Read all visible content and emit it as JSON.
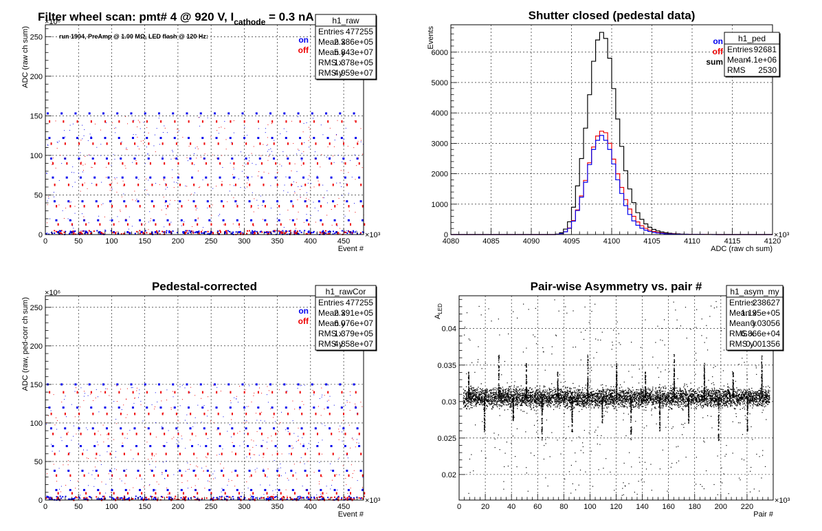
{
  "panels": [
    {
      "id": "raw",
      "title": "Filter wheel scan: pmt#   4 @   920 V, I",
      "title_sub": "cathode",
      "title_tail": " = 0.3 nA",
      "run_label": "run 1904, PreAmp @ 1.00 MΩ, LED flash @  120 Hz:",
      "ylabel": "ADC (raw ch sum)",
      "xlabel": "Event #",
      "y_exponent": "×10⁶",
      "x_exponent": "×10³",
      "legend": [
        {
          "label": "on",
          "color": "#0000ee"
        },
        {
          "label": "off",
          "color": "#ee0000"
        }
      ],
      "stats": {
        "name": "h1_raw",
        "rows": [
          [
            "Entries",
            "477255"
          ],
          [
            "Mean x",
            "2.386e+05"
          ],
          [
            "Mean y",
            "5.843e+07"
          ],
          [
            "RMS x",
            "1.378e+05"
          ],
          [
            "RMS y",
            "4.959e+07"
          ]
        ]
      }
    },
    {
      "id": "ped",
      "title": "Shutter closed (pedestal data)",
      "ylabel": "Events",
      "xlabel": "ADC (raw ch sum)",
      "x_exponent": "×10³",
      "legend": [
        {
          "label": "on",
          "color": "#0000ee"
        },
        {
          "label": "off",
          "color": "#ee0000"
        },
        {
          "label": "sum",
          "color": "#000000"
        }
      ],
      "stats": {
        "name": "h1_ped",
        "rows": [
          [
            "Entries",
            "92681"
          ],
          [
            "Mean",
            "4.1e+06"
          ],
          [
            "RMS",
            "2530"
          ]
        ]
      }
    },
    {
      "id": "cor",
      "title": "Pedestal-corrected",
      "ylabel": "ADC (raw, ped-corr ch sum)",
      "xlabel": "Event #",
      "y_exponent": "×10⁶",
      "x_exponent": "×10³",
      "legend": [
        {
          "label": "on",
          "color": "#0000ee"
        },
        {
          "label": "off",
          "color": "#ee0000"
        }
      ],
      "stats": {
        "name": "h1_rawCor",
        "rows": [
          [
            "Entries",
            "477255"
          ],
          [
            "Mean x",
            "2.391e+05"
          ],
          [
            "Mean y",
            "6.076e+07"
          ],
          [
            "RMS x",
            "1.379e+05"
          ],
          [
            "RMS y",
            "4.858e+07"
          ]
        ]
      }
    },
    {
      "id": "asym",
      "title": "Pair-wise Asymmetry vs. pair #",
      "ylabel": "A",
      "ylabel_sub": "LED",
      "xlabel": "Pair #",
      "x_exponent": "×10³",
      "legend": [],
      "stats": {
        "name": "h1_asym_my",
        "rows": [
          [
            "Entries",
            "238627"
          ],
          [
            "Mean x",
            "1.195e+05"
          ],
          [
            "Mean y",
            "0.03056"
          ],
          [
            "RMS x",
            "6.866e+04"
          ],
          [
            "RMS y",
            "0.001356"
          ]
        ]
      }
    }
  ],
  "chart_data": [
    {
      "type": "scatter",
      "xlim": [
        0,
        480
      ],
      "ylim": [
        0,
        265
      ],
      "xticks": [
        0,
        50,
        100,
        150,
        200,
        250,
        300,
        350,
        400,
        450
      ],
      "yticks": [
        0,
        50,
        100,
        150,
        200,
        250
      ],
      "grid": true,
      "step_levels_on": [
        153,
        122,
        96,
        72,
        42,
        18,
        3
      ],
      "step_levels_off": [
        143,
        115,
        90,
        63,
        36,
        13,
        2
      ],
      "step_period": 21,
      "series": [
        {
          "name": "on",
          "color": "#0000ee"
        },
        {
          "name": "off",
          "color": "#ee0000"
        }
      ]
    },
    {
      "type": "bar",
      "xlim": [
        4080,
        4120
      ],
      "ylim": [
        0,
        6900
      ],
      "xticks": [
        4080,
        4085,
        4090,
        4095,
        4100,
        4105,
        4110,
        4115,
        4120
      ],
      "yticks": [
        0,
        1000,
        2000,
        3000,
        4000,
        5000,
        6000
      ],
      "grid": true,
      "bin_width": 0.5,
      "bins_start": 4093,
      "sum": [
        15,
        60,
        180,
        420,
        900,
        1600,
        2500,
        3500,
        4600,
        5700,
        6400,
        6650,
        6450,
        5800,
        4800,
        3800,
        2900,
        2100,
        1500,
        1050,
        720,
        500,
        350,
        240,
        170,
        120,
        85,
        60,
        42,
        30,
        22,
        16,
        12,
        9,
        7,
        5,
        4,
        3,
        2,
        1
      ],
      "on": [
        7,
        30,
        90,
        205,
        440,
        790,
        1230,
        1720,
        2300,
        2800,
        3100,
        3260,
        3100,
        2800,
        2320,
        1800,
        1350,
        950,
        660,
        450,
        305,
        210,
        145,
        100,
        70,
        50,
        36,
        26,
        18,
        13,
        10,
        7,
        5,
        4,
        3,
        2,
        2,
        1,
        1,
        0
      ],
      "off": [
        8,
        30,
        92,
        215,
        460,
        810,
        1270,
        1780,
        2360,
        2880,
        3240,
        3400,
        3350,
        3000,
        2480,
        2000,
        1550,
        1150,
        840,
        600,
        415,
        290,
        205,
        140,
        100,
        70,
        49,
        34,
        24,
        17,
        12,
        9,
        7,
        5,
        4,
        3,
        2,
        2,
        1,
        1
      ],
      "series": [
        {
          "name": "on",
          "color": "#0000ee"
        },
        {
          "name": "off",
          "color": "#ee0000"
        },
        {
          "name": "sum",
          "color": "#000000"
        }
      ]
    },
    {
      "type": "scatter",
      "xlim": [
        0,
        480
      ],
      "ylim": [
        0,
        265
      ],
      "xticks": [
        0,
        50,
        100,
        150,
        200,
        250,
        300,
        350,
        400,
        450
      ],
      "yticks": [
        0,
        50,
        100,
        150,
        200,
        250
      ],
      "grid": true,
      "step_levels_on": [
        150,
        120,
        93,
        70,
        38,
        13,
        1
      ],
      "step_levels_off": [
        140,
        112,
        86,
        60,
        32,
        9,
        0.5
      ],
      "step_period": 21,
      "series": [
        {
          "name": "on",
          "color": "#0000ee"
        },
        {
          "name": "off",
          "color": "#ee0000"
        }
      ]
    },
    {
      "type": "scatter",
      "xlim": [
        0,
        240
      ],
      "ylim": [
        0.0165,
        0.0445
      ],
      "xticks": [
        0,
        20,
        40,
        60,
        80,
        100,
        120,
        140,
        160,
        180,
        200,
        220
      ],
      "yticks": [
        0.02,
        0.025,
        0.03,
        0.035,
        0.04
      ],
      "yticklabels": [
        "0.02",
        "0.025",
        "0.03",
        "0.035",
        "0.04"
      ],
      "grid": true,
      "band_center": 0.0306,
      "band_half_width": 0.0015,
      "spike_x": [
        7,
        19,
        30,
        41,
        51,
        63,
        75,
        86,
        98,
        109,
        120,
        131,
        142,
        153,
        164,
        175,
        187,
        198,
        209,
        220,
        231
      ],
      "series": [
        {
          "name": "asym",
          "color": "#000000"
        }
      ]
    }
  ]
}
